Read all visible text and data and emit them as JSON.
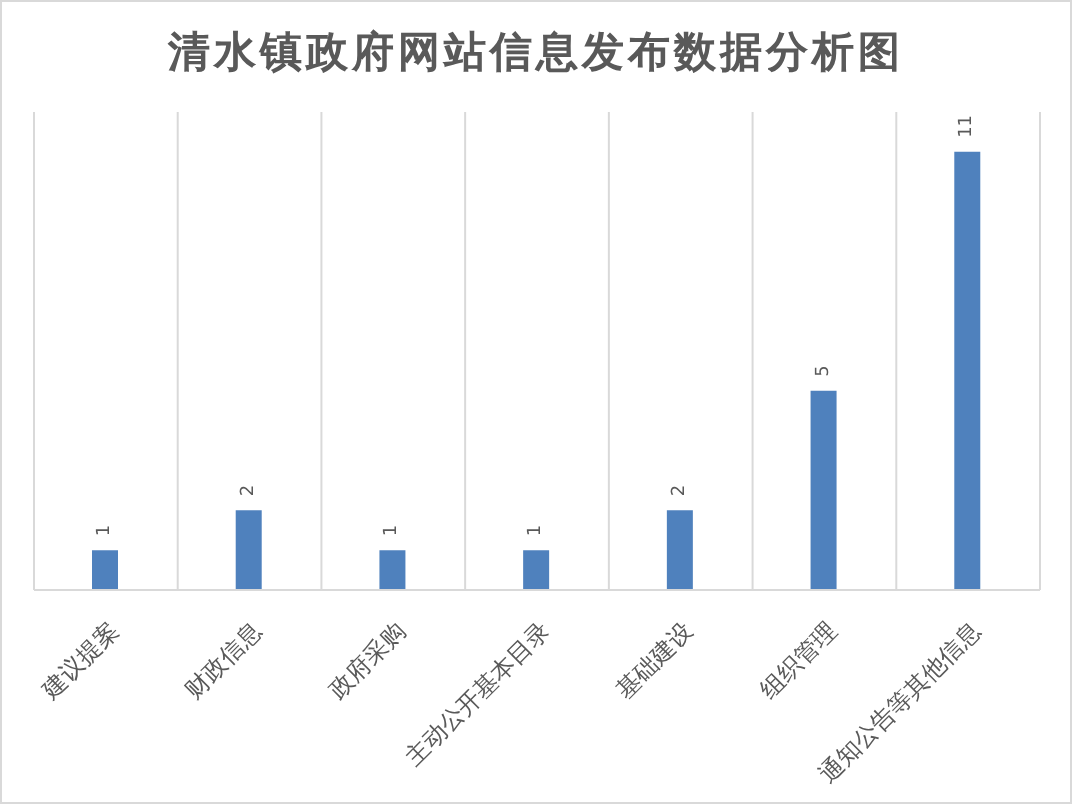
{
  "chart_data": {
    "type": "bar",
    "title": "清水镇政府网站信息发布数据分析图",
    "categories": [
      "建议提案",
      "财政信息",
      "政府采购",
      "主动公开基本目录",
      "基础建设",
      "组织管理",
      "通知公告等其他信息"
    ],
    "values": [
      1,
      2,
      1,
      1,
      2,
      5,
      11
    ],
    "color": "#4f81bd",
    "data_labels": true,
    "grid": "x",
    "tick_labels": "x"
  }
}
